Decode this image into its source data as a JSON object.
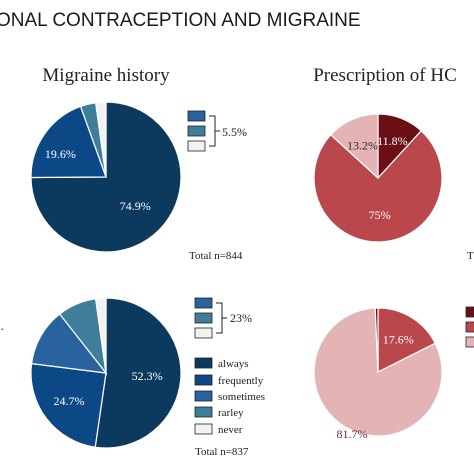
{
  "banner": {
    "title": "ONAL CONTRACEPTION AND MIGRAINE"
  },
  "colors": {
    "always": "#0c3a5e",
    "frequently": "#0d4886",
    "sometimes": "#2a62a0",
    "rarely": "#3f7e9a",
    "never": "#f2f2f2",
    "hc_dark": "#6b0f17",
    "hc_mid": "#b9474c",
    "hc_light": "#e3b3b6",
    "hc_top_dark": "#6b0f17",
    "hc_top_mid": "#b9474c",
    "hc_top_light": "#e7c2c3"
  },
  "legend": {
    "items": [
      {
        "key": "always",
        "label": "always"
      },
      {
        "key": "frequently",
        "label": "frequently"
      },
      {
        "key": "sometimes",
        "label": "sometimes"
      },
      {
        "key": "rarely",
        "label": "rarley"
      },
      {
        "key": "never",
        "label": "never"
      }
    ]
  },
  "bracket_labels": {
    "top": "5.5%",
    "bottom": "23%"
  },
  "totals": {
    "top": "Total n=844",
    "bottom": "Total n=837"
  },
  "edge_glyphs": {
    "right_top": "T",
    "left_bottom": "·"
  },
  "chart_data": [
    {
      "type": "pie",
      "title": "Migraine history",
      "slices": [
        {
          "key": "always",
          "value": 74.9,
          "label": "74.9%"
        },
        {
          "key": "frequently",
          "value": 19.6,
          "label": "19.6%"
        },
        {
          "key": "sometimes",
          "value": 0,
          "label": ""
        },
        {
          "key": "rarely",
          "value": 3.3,
          "label": ""
        },
        {
          "key": "never",
          "value": 2.2,
          "label": ""
        }
      ]
    },
    {
      "type": "pie",
      "title": "",
      "slices": [
        {
          "key": "always",
          "value": 52.3,
          "label": "52.3%"
        },
        {
          "key": "frequently",
          "value": 24.7,
          "label": "24.7%"
        },
        {
          "key": "sometimes",
          "value": 12.4,
          "label": ""
        },
        {
          "key": "rarely",
          "value": 8.4,
          "label": ""
        },
        {
          "key": "never",
          "value": 2.2,
          "label": ""
        }
      ]
    },
    {
      "type": "pie",
      "title": "Prescription of HC",
      "slices": [
        {
          "key": "hc_dark",
          "value": 11.8,
          "label": "11.8%"
        },
        {
          "key": "hc_mid",
          "value": 75,
          "label": "75%"
        },
        {
          "key": "hc_light",
          "value": 13.2,
          "label": "13.2%"
        }
      ]
    },
    {
      "type": "pie",
      "title": "",
      "slices": [
        {
          "key": "hc_mid",
          "value": 17.6,
          "label": "17.6%"
        },
        {
          "key": "hc_light",
          "value": 81.7,
          "label": "81.7%"
        },
        {
          "key": "hc_dark",
          "value": 0.7,
          "label": ""
        }
      ]
    }
  ]
}
